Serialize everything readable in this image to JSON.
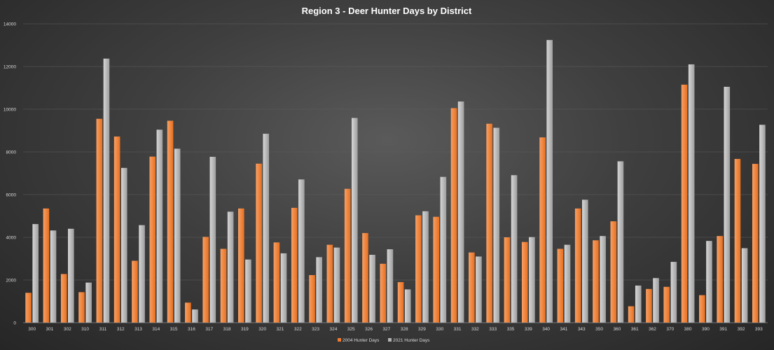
{
  "chart_data": {
    "type": "bar",
    "title": "Region 3 - Deer Hunter Days by District",
    "xlabel": "",
    "ylabel": "",
    "ylim": [
      0,
      14000
    ],
    "yticks": [
      "0",
      "2000",
      "4000",
      "6000",
      "8000",
      "10000",
      "12000",
      "14000"
    ],
    "grid": true,
    "legend_position": "bottom",
    "categories": [
      "300",
      "301",
      "302",
      "310",
      "311",
      "312",
      "313",
      "314",
      "315",
      "316",
      "317",
      "318",
      "319",
      "320",
      "321",
      "322",
      "323",
      "324",
      "325",
      "326",
      "327",
      "328",
      "329",
      "330",
      "331",
      "332",
      "333",
      "335",
      "339",
      "340",
      "341",
      "343",
      "350",
      "360",
      "361",
      "362",
      "370",
      "380",
      "390",
      "391",
      "392",
      "393"
    ],
    "series": [
      {
        "name": "2004 Hunter Days",
        "color": "#f07b2e",
        "values": [
          1400,
          5350,
          2280,
          1430,
          9550,
          8720,
          2900,
          7780,
          9460,
          940,
          4020,
          3460,
          5350,
          7450,
          3760,
          5380,
          2230,
          3650,
          6270,
          4200,
          2760,
          1900,
          5030,
          4960,
          10050,
          3290,
          9320,
          4000,
          3780,
          8680,
          3460,
          5350,
          3860,
          4750,
          770,
          1580,
          1680,
          11150,
          1290,
          4060,
          7670,
          7440
        ]
      },
      {
        "name": "2021 Hunter Days",
        "color": "#b3b3b3",
        "values": [
          4620,
          4320,
          4400,
          1880,
          12370,
          7250,
          4570,
          9040,
          8150,
          620,
          7770,
          5200,
          2960,
          8850,
          3250,
          6710,
          3070,
          3520,
          9590,
          3180,
          3440,
          1560,
          5220,
          6830,
          10360,
          3100,
          9130,
          6910,
          4010,
          13240,
          3650,
          5760,
          4060,
          7560,
          1740,
          2090,
          2850,
          12100,
          3830,
          11050,
          3490,
          9270
        ]
      }
    ]
  }
}
